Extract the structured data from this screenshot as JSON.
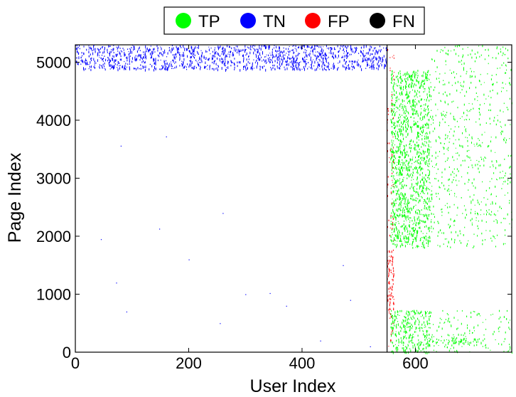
{
  "chart_data": {
    "type": "scatter",
    "xlabel": "User Index",
    "ylabel": "Page Index",
    "xlim": [
      0,
      770
    ],
    "ylim": [
      0,
      5300
    ],
    "x_ticks": [
      0,
      200,
      400,
      600
    ],
    "y_ticks": [
      0,
      1000,
      2000,
      3000,
      4000,
      5000
    ],
    "divider_x": 550,
    "legend": {
      "placement": "top-center, outside plot",
      "entries": [
        {
          "label": "TP",
          "color": "#00ff00"
        },
        {
          "label": "TN",
          "color": "#0000ff"
        },
        {
          "label": "FP",
          "color": "#ff0000"
        },
        {
          "label": "FN",
          "color": "#000000"
        }
      ]
    },
    "series": [
      {
        "name": "TN",
        "color": "#0000ff",
        "regions": [
          {
            "x": [
              0,
              550
            ],
            "y": [
              4880,
              5300
            ],
            "density": "dense"
          }
        ],
        "scattered_points": [
          [
            45,
            1950
          ],
          [
            80,
            3560
          ],
          [
            90,
            700
          ],
          [
            72,
            1200
          ],
          [
            148,
            2130
          ],
          [
            160,
            3720
          ],
          [
            255,
            500
          ],
          [
            300,
            1000
          ],
          [
            343,
            1020
          ],
          [
            372,
            800
          ],
          [
            472,
            1500
          ],
          [
            432,
            200
          ],
          [
            520,
            100
          ],
          [
            485,
            900
          ],
          [
            260,
            2400
          ],
          [
            200,
            1600
          ]
        ]
      },
      {
        "name": "TP",
        "color": "#00ff00",
        "regions": [
          {
            "x": [
              556,
              625
            ],
            "y": [
              1800,
              4870
            ],
            "density": "dense"
          },
          {
            "x": [
              556,
              625
            ],
            "y": [
              0,
              730
            ],
            "density": "dense"
          },
          {
            "x": [
              625,
              770
            ],
            "y": [
              1800,
              5300
            ],
            "density": "sparse"
          },
          {
            "x": [
              625,
              770
            ],
            "y": [
              0,
              730
            ],
            "density": "sparse"
          },
          {
            "x": [
              625,
              720
            ],
            "y": [
              150,
              250
            ],
            "density": "dense"
          }
        ]
      },
      {
        "name": "FP",
        "color": "#ff0000",
        "regions": [
          {
            "x": [
              549,
              562
            ],
            "y": [
              700,
              1780
            ],
            "density": "dense"
          },
          {
            "x": [
              549,
              562
            ],
            "y": [
              0,
              680
            ],
            "density": "sparse"
          },
          {
            "x": [
              549,
              562
            ],
            "y": [
              1800,
              5300
            ],
            "density": "sparse"
          }
        ]
      },
      {
        "name": "FN",
        "color": "#000000",
        "regions": []
      }
    ]
  }
}
